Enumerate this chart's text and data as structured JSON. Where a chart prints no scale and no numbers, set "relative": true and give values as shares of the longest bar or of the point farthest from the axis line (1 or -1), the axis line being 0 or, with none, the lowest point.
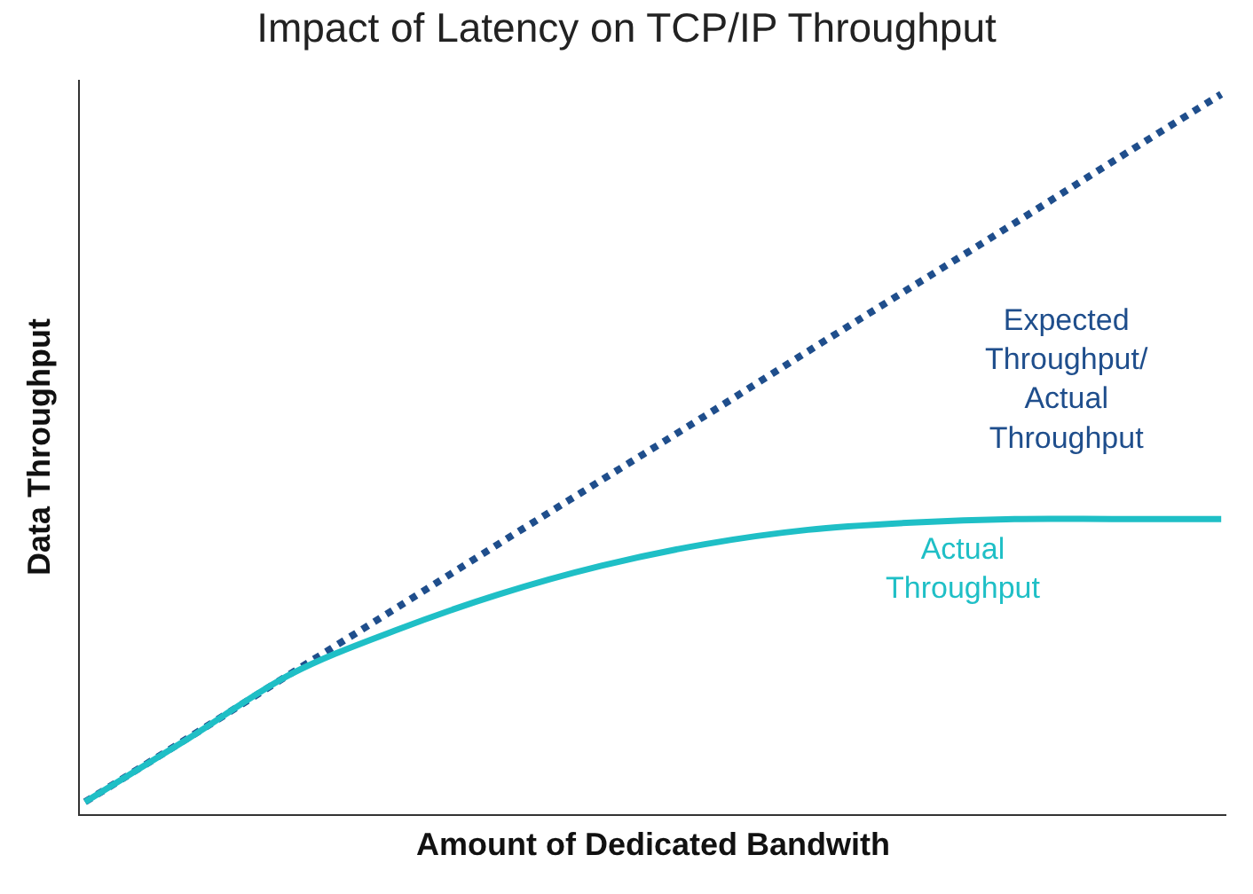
{
  "chart_data": {
    "type": "line",
    "title": "Impact of Latency on TCP/IP Throughput",
    "xlabel": "Amount of Dedicated Bandwith",
    "ylabel": "Data Throughput",
    "relative": true,
    "legend": false,
    "categories": [
      null,
      null,
      null,
      null,
      null,
      null,
      null,
      null,
      null,
      null,
      null,
      null
    ],
    "series": [
      {
        "name": "Expected Throughput/ Actual Throughput",
        "color": "#1f4e8c",
        "line_style": "dotted",
        "values": [
          0.017,
          0.106,
          0.196,
          0.285,
          0.375,
          0.464,
          0.553,
          0.643,
          0.732,
          0.821,
          0.911,
          1
        ]
      },
      {
        "name": "Actual Throughput",
        "color": "#1fbfc6",
        "line_style": "solid",
        "values": [
          0.017,
          0.105,
          0.195,
          0.255,
          0.305,
          0.345,
          0.375,
          0.395,
          0.405,
          0.41,
          0.41,
          0.41
        ]
      }
    ]
  }
}
